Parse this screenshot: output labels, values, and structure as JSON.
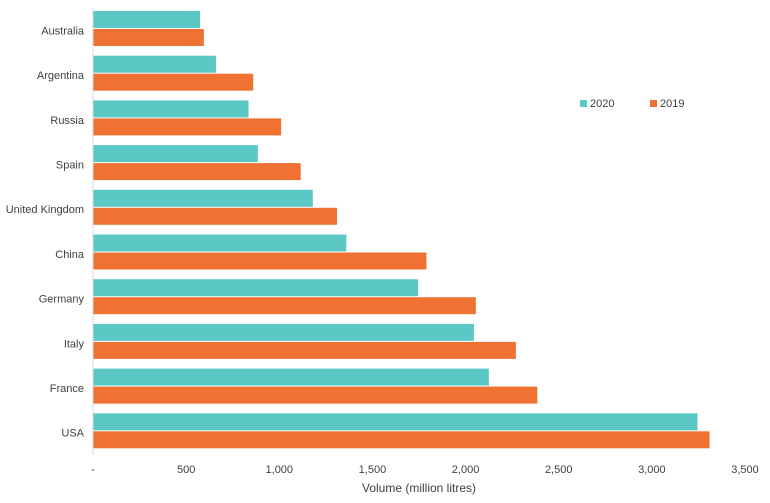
{
  "chart_data": {
    "type": "bar",
    "orientation": "horizontal",
    "categories": [
      "Australia",
      "Argentina",
      "Russia",
      "Spain",
      "United Kingdom",
      "China",
      "Germany",
      "Italy",
      "France",
      "USA"
    ],
    "series": [
      {
        "name": "2020",
        "color": "#5bc8c6",
        "values": [
          575,
          660,
          835,
          885,
          1180,
          1360,
          1745,
          2045,
          2125,
          3245
        ]
      },
      {
        "name": "2019",
        "color": "#f07233",
        "values": [
          595,
          860,
          1010,
          1115,
          1310,
          1790,
          2055,
          2270,
          2385,
          3310
        ]
      }
    ],
    "xlabel": "Volume (million litres)",
    "ylabel": "",
    "title": "",
    "xlim": [
      0,
      3500
    ],
    "x_ticks": [
      0,
      500,
      1000,
      1500,
      2000,
      2500,
      3000,
      3500
    ],
    "x_tick_labels": [
      "-",
      "500",
      "1,000",
      "1,500",
      "2,000",
      "2,500",
      "3,000",
      "3,500"
    ],
    "legend": {
      "placement": "top-right",
      "entries": [
        "2020",
        "2019"
      ]
    },
    "grid": false
  }
}
